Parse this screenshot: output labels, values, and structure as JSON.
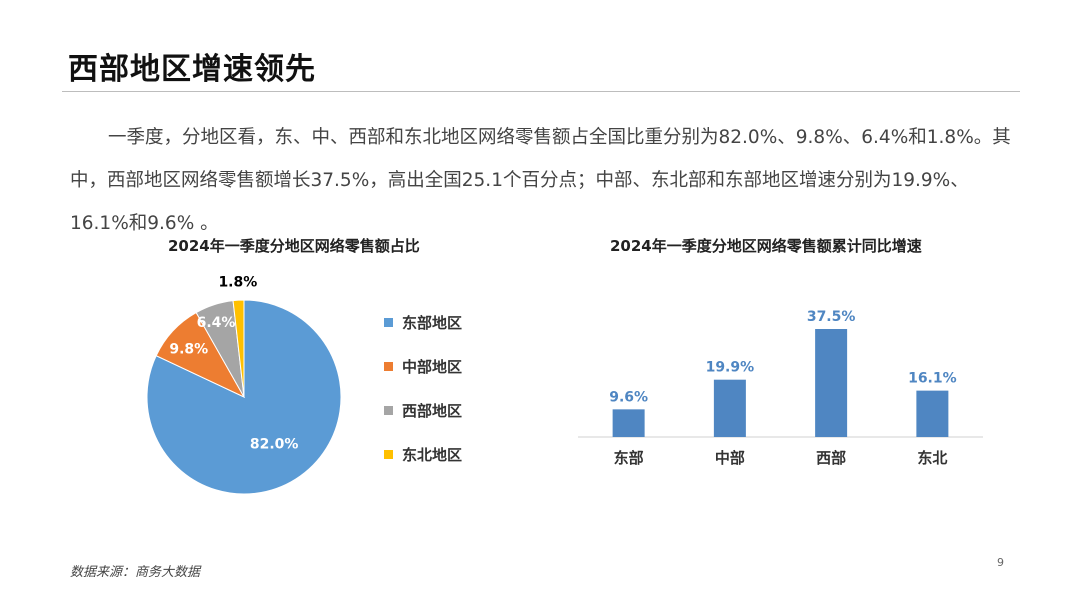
{
  "slide": {
    "title": "西部地区增速领先",
    "paragraph": "一季度，分地区看，东、中、西部和东北地区网络零售额占全国比重分别为82.0%、9.8%、6.4%和1.8%。其中，西部地区网络零售额增长37.5%，高出全国25.1个百分点；中部、东北部和东部地区增速分别为19.9%、16.1%和9.6% 。",
    "source": "数据来源：商务大数据",
    "page_number": "9"
  },
  "chart_data": [
    {
      "type": "pie",
      "title": "2024年一季度分地区网络零售额占比",
      "categories": [
        "东部地区",
        "中部地区",
        "西部地区",
        "东北地区"
      ],
      "values": [
        82.0,
        9.8,
        6.4,
        1.8
      ],
      "labels": [
        "82.0%",
        "9.8%",
        "6.4%",
        "1.8%"
      ],
      "colors": [
        "#5B9BD5",
        "#ED7D31",
        "#A5A5A5",
        "#FFC000"
      ],
      "legend_position": "right"
    },
    {
      "type": "bar",
      "title": "2024年一季度分地区网络零售额累计同比增速",
      "categories": [
        "东部",
        "中部",
        "西部",
        "东北"
      ],
      "values": [
        9.6,
        19.9,
        37.5,
        16.1
      ],
      "labels": [
        "9.6%",
        "19.9%",
        "37.5%",
        "16.1%"
      ],
      "color": "#4F86C2",
      "label_color": "#4F86C2",
      "ylim": [
        0,
        37.5
      ]
    }
  ]
}
